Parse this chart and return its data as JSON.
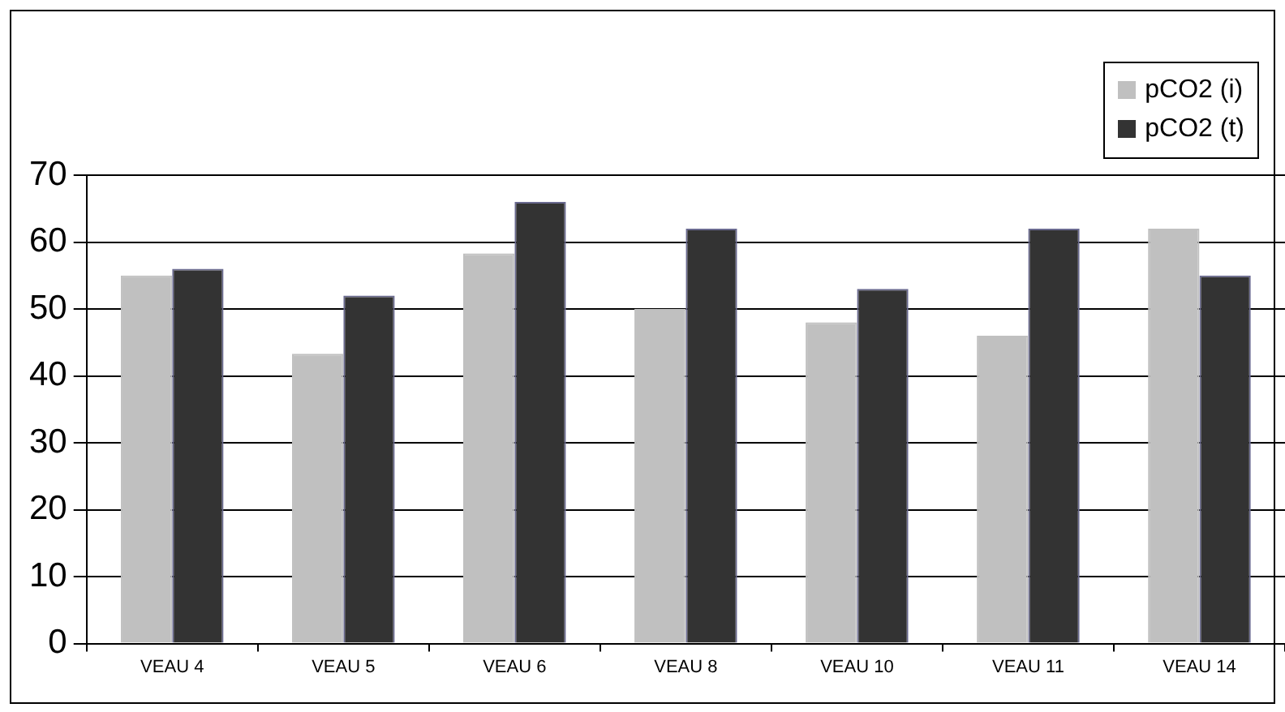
{
  "chart_data": {
    "type": "bar",
    "categories": [
      "VEAU 4",
      "VEAU 5",
      "VEAU 6",
      "VEAU 8",
      "VEAU 10",
      "VEAU 11",
      "VEAU 14"
    ],
    "series": [
      {
        "name": "pCO2 (i)",
        "color": "#c0c0c0",
        "values": [
          55,
          43.3,
          58.3,
          50,
          48,
          46,
          62
        ]
      },
      {
        "name": "pCO2 (t)",
        "color": "#333333",
        "values": [
          56,
          52,
          66,
          62,
          53,
          62,
          55
        ]
      }
    ],
    "ylim": [
      0,
      70
    ],
    "yticks": [
      0,
      10,
      20,
      30,
      40,
      50,
      60,
      70
    ],
    "grid": "y",
    "legend": "top right"
  }
}
